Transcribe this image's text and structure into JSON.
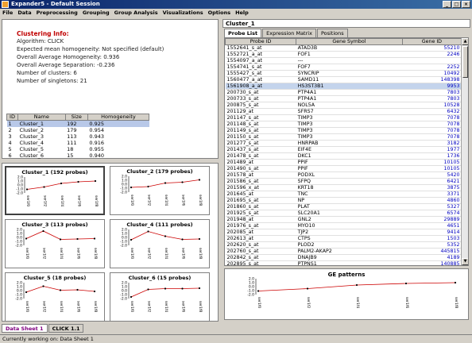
{
  "window": {
    "title": "Expander5 - Default Session"
  },
  "menu": [
    "File",
    "Data",
    "Preprocessing",
    "Grouping",
    "Group Analysis",
    "Visualizations",
    "Options",
    "Help"
  ],
  "info": {
    "heading": "Clustering Info:",
    "lines": [
      "Algorithm: CLICK",
      "Expected mean homogeneity:       Not specified (default)",
      "Overall Average Homogeneity: 0.936",
      "Overall Average Separation: -0.236",
      "Number of clusters: 6",
      "Number of singletons: 21"
    ]
  },
  "summary": {
    "headers": [
      "ID",
      "Name",
      "Size",
      "Homogeneity"
    ],
    "rows": [
      [
        "1",
        "Cluster_1",
        "192",
        "0.925"
      ],
      [
        "2",
        "Cluster_2",
        "179",
        "0.954"
      ],
      [
        "3",
        "Cluster_3",
        "113",
        "0.943"
      ],
      [
        "4",
        "Cluster_4",
        "111",
        "0.916"
      ],
      [
        "5",
        "Cluster_5",
        "18",
        "0.955"
      ],
      [
        "6",
        "Cluster_6",
        "15",
        "0.940"
      ]
    ]
  },
  "cluster_plots": {
    "x_labels": [
      "ser1f0",
      "ser1f2",
      "ser1f4",
      "ser1f6",
      "ser1f8"
    ],
    "y_ticks": [
      "2.0",
      "1.0",
      "0.0",
      "-1.0",
      "-2.0"
    ],
    "ylim": [
      -2.0,
      2.0
    ],
    "plots": [
      {
        "title": "Cluster_1 (192 probes)",
        "values": [
          -1.1,
          -0.5,
          0.4,
          0.8,
          1.0
        ]
      },
      {
        "title": "Cluster_2 (179 probes)",
        "values": [
          -0.8,
          -0.6,
          0.3,
          0.5,
          1.1
        ]
      },
      {
        "title": "Cluster_3 (113 probes)",
        "values": [
          -0.3,
          1.6,
          -0.5,
          -0.4,
          -0.3
        ]
      },
      {
        "title": "Cluster_4 (111 probes)",
        "values": [
          -0.6,
          1.5,
          0.3,
          -0.5,
          -0.4
        ]
      },
      {
        "title": "Cluster_5 (18 probes)",
        "values": [
          -0.4,
          1.1,
          0.1,
          0.2,
          -0.2
        ]
      },
      {
        "title": "Cluster_6 (15 probes)",
        "values": [
          -1.6,
          0.3,
          0.5,
          0.5,
          0.6
        ]
      }
    ]
  },
  "right_panel": {
    "header": "Cluster_1",
    "tabs": [
      "Probe List",
      "Expression Matrix",
      "Positions"
    ],
    "active_tab": 0,
    "columns": [
      "Probe ID",
      "Gene Symbol",
      "Gene ID"
    ],
    "rows": [
      [
        "1552641_s_at",
        "ATAD3B",
        "55210"
      ],
      [
        "1552721_a_at",
        "FOF1",
        "2246"
      ],
      [
        "1554097_a_at",
        "---",
        ""
      ],
      [
        "1554741_s_at",
        "FOF7",
        "2252"
      ],
      [
        "1555427_s_at",
        "SYNCRIP",
        "10492"
      ],
      [
        "1560477_a_at",
        "SAMD11",
        "148398"
      ],
      [
        "1561908_a_at",
        "HS3ST3B1",
        "9953"
      ],
      [
        "200730_s_at",
        "PTP4A1",
        "7803"
      ],
      [
        "200733_s_at",
        "PTP4A1",
        "7803"
      ],
      [
        "200875_s_at",
        "NOL5A",
        "10528"
      ],
      [
        "201129_at",
        "SFRS7",
        "6432"
      ],
      [
        "201147_s_at",
        "TIMP3",
        "7078"
      ],
      [
        "201148_s_at",
        "TIMP3",
        "7078"
      ],
      [
        "201149_s_at",
        "TIMP3",
        "7078"
      ],
      [
        "201150_s_at",
        "TIMP3",
        "7078"
      ],
      [
        "201277_s_at",
        "HNRPAB",
        "3182"
      ],
      [
        "201437_s_at",
        "EIF4E",
        "1977"
      ],
      [
        "201478_s_at",
        "DKC1",
        "1736"
      ],
      [
        "201489_at",
        "PPIF",
        "10105"
      ],
      [
        "201490_s_at",
        "PPIF",
        "10105"
      ],
      [
        "201578_at",
        "PODXL",
        "5420"
      ],
      [
        "201586_s_at",
        "SFPQ",
        "6421"
      ],
      [
        "201596_x_at",
        "KRT18",
        "3875"
      ],
      [
        "201645_at",
        "TNC",
        "3371"
      ],
      [
        "201695_s_at",
        "NP",
        "4860"
      ],
      [
        "201860_s_at",
        "PLAT",
        "5327"
      ],
      [
        "201925_s_at",
        "SLC20A1",
        "6574"
      ],
      [
        "201948_at",
        "GNL2",
        "29889"
      ],
      [
        "201976_s_at",
        "MYO10",
        "4651"
      ],
      [
        "202085_at",
        "TJP2",
        "9414"
      ],
      [
        "202613_at",
        "CTPS",
        "1503"
      ],
      [
        "202620_s_at",
        "PLOD2",
        "5352"
      ],
      [
        "202760_s_at",
        "PALM2-AKAP2",
        "445815"
      ],
      [
        "202842_s_at",
        "DNAJB9",
        "4189"
      ],
      [
        "202895_s_at",
        "PTPNS1",
        "140885"
      ]
    ],
    "selected_row": 6
  },
  "ge_patterns": {
    "title": "GE patterns",
    "x_labels": [
      "ser1f0",
      "ser1f2",
      "ser1f4",
      "ser1f6",
      "ser1f8"
    ],
    "y_ticks": [
      "2.0",
      "1.0",
      "0.0",
      "-1.0",
      "-2.0"
    ],
    "values": [
      -1.1,
      -0.5,
      0.4,
      0.8,
      1.0
    ]
  },
  "bottom_tabs": [
    "Data Sheet 1",
    "CLICK 1.1"
  ],
  "status": "Currently working on: Data Sheet 1",
  "colors": {
    "title_bar": "#0a246a",
    "heading": "#c00000",
    "line": "#cc0000",
    "gene_id": "#0000c0"
  }
}
